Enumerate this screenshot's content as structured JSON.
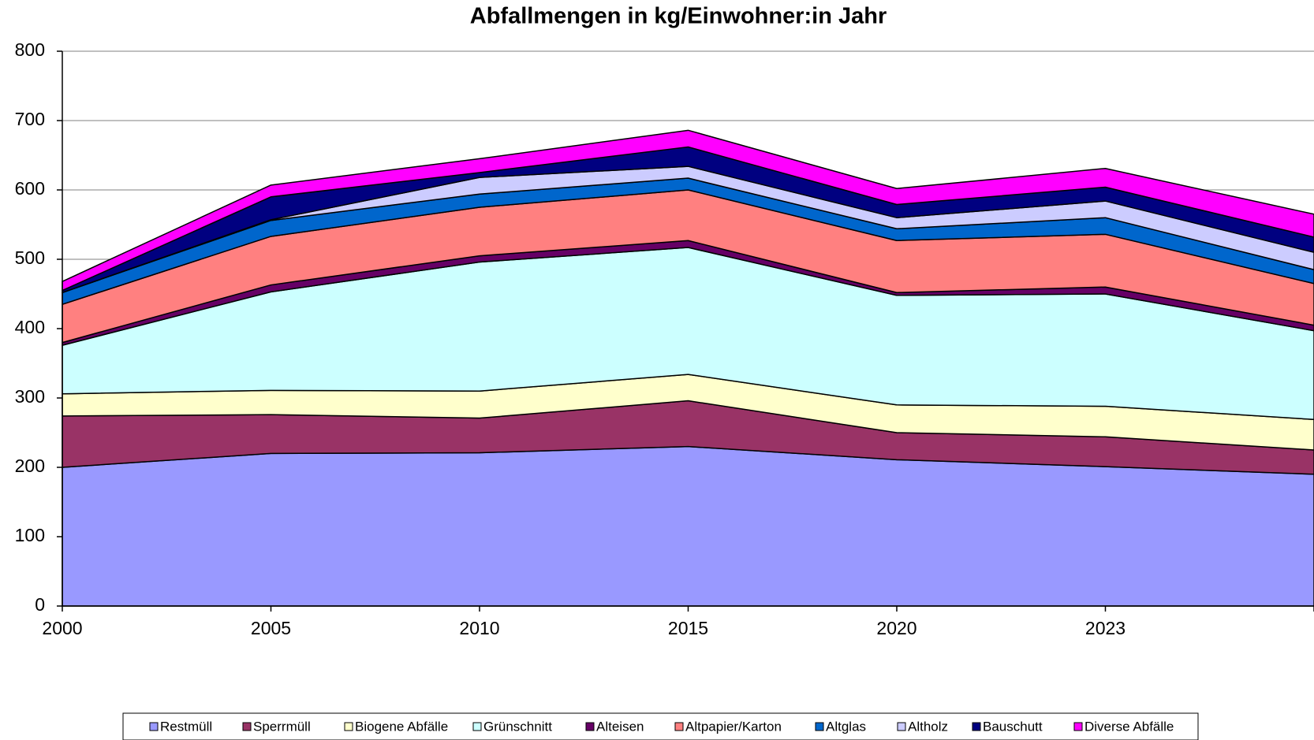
{
  "chart_data": {
    "type": "stacked_area",
    "title": "Abfallmengen in kg/Einwohner:in Jahr",
    "categories": [
      "2000",
      "2005",
      "2010",
      "2015",
      "2020",
      "2023",
      null
    ],
    "series": [
      {
        "name": "Restmüll",
        "color": "#9999ff",
        "values": [
          200,
          220,
          221,
          230,
          211,
          201,
          190
        ]
      },
      {
        "name": "Sperrmüll",
        "color": "#993366",
        "values": [
          74,
          56,
          50,
          66,
          39,
          43,
          35
        ]
      },
      {
        "name": "Biogene Abfälle",
        "color": "#ffffcc",
        "values": [
          32,
          35,
          39,
          38,
          40,
          44,
          44
        ]
      },
      {
        "name": "Grünschnitt",
        "color": "#ccffff",
        "values": [
          70,
          142,
          186,
          183,
          158,
          162,
          128
        ]
      },
      {
        "name": "Alteisen",
        "color": "#660066",
        "values": [
          4,
          10,
          9,
          10,
          4,
          10,
          8
        ]
      },
      {
        "name": "Altpapier/Karton",
        "color": "#ff8080",
        "values": [
          55,
          70,
          70,
          73,
          75,
          76,
          60
        ]
      },
      {
        "name": "Altglas",
        "color": "#0066cc",
        "values": [
          17,
          23,
          19,
          17,
          17,
          24,
          20
        ]
      },
      {
        "name": "Altholz",
        "color": "#ccccff",
        "values": [
          0,
          1,
          24,
          17,
          16,
          24,
          25
        ]
      },
      {
        "name": "Bauschutt",
        "color": "#000080",
        "values": [
          3,
          33,
          7,
          28,
          19,
          20,
          22
        ]
      },
      {
        "name": "Diverse Abfälle",
        "color": "#ff00ff",
        "values": [
          13,
          17,
          20,
          24,
          23,
          27,
          33
        ]
      }
    ],
    "ylim": [
      0,
      800
    ],
    "yticks": [
      0,
      100,
      200,
      300,
      400,
      500,
      600,
      700,
      800
    ],
    "grid": true
  }
}
